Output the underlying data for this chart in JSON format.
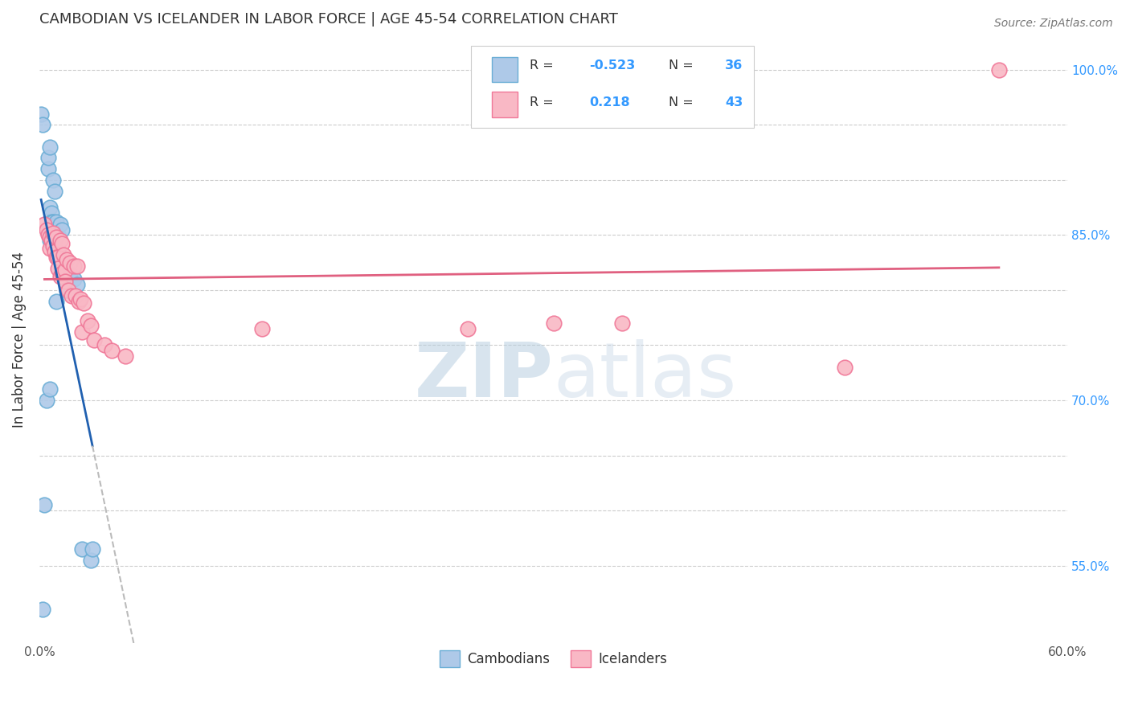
{
  "title": "CAMBODIAN VS ICELANDER IN LABOR FORCE | AGE 45-54 CORRELATION CHART",
  "source": "Source: ZipAtlas.com",
  "ylabel": "In Labor Force | Age 45-54",
  "xlim": [
    0.0,
    0.6
  ],
  "ylim": [
    0.48,
    1.03
  ],
  "xtick_positions": [
    0.0,
    0.1,
    0.2,
    0.3,
    0.4,
    0.5,
    0.6
  ],
  "xtick_labels": [
    "0.0%",
    "",
    "",
    "",
    "",
    "",
    "60.0%"
  ],
  "ytick_positions": [
    0.55,
    0.6,
    0.65,
    0.7,
    0.75,
    0.8,
    0.85,
    0.9,
    0.95,
    1.0
  ],
  "ytick_labels": [
    "55.0%",
    "",
    "",
    "70.0%",
    "",
    "",
    "85.0%",
    "",
    "",
    "100.0%"
  ],
  "cambodian_face": "#aec9e8",
  "cambodian_edge": "#6baed6",
  "icelander_face": "#f9b8c5",
  "icelander_edge": "#f07898",
  "cambodian_line_color": "#2060b0",
  "icelander_line_color": "#e06080",
  "ext_line_color": "#bbbbbb",
  "grid_color": "#cccccc",
  "text_color": "#333333",
  "blue_label_color": "#3399ff",
  "axis_tick_color": "#555555",
  "watermark_color": "#ccdcee",
  "cambodians_x": [
    0.001,
    0.002,
    0.003,
    0.004,
    0.005,
    0.005,
    0.006,
    0.006,
    0.006,
    0.006,
    0.007,
    0.007,
    0.007,
    0.008,
    0.008,
    0.008,
    0.008,
    0.009,
    0.009,
    0.01,
    0.01,
    0.01,
    0.011,
    0.011,
    0.012,
    0.013,
    0.013,
    0.015,
    0.016,
    0.018,
    0.02,
    0.022,
    0.025,
    0.03,
    0.031,
    0.002
  ],
  "cambodians_y": [
    0.96,
    0.95,
    0.605,
    0.7,
    0.91,
    0.92,
    0.93,
    0.875,
    0.845,
    0.71,
    0.87,
    0.862,
    0.842,
    0.9,
    0.862,
    0.858,
    0.848,
    0.89,
    0.852,
    0.862,
    0.852,
    0.79,
    0.85,
    0.835,
    0.86,
    0.855,
    0.825,
    0.82,
    0.8,
    0.815,
    0.81,
    0.805,
    0.565,
    0.555,
    0.565,
    0.51
  ],
  "icelanders_x": [
    0.003,
    0.004,
    0.005,
    0.006,
    0.006,
    0.007,
    0.008,
    0.008,
    0.009,
    0.01,
    0.01,
    0.011,
    0.011,
    0.012,
    0.012,
    0.013,
    0.013,
    0.014,
    0.015,
    0.015,
    0.016,
    0.017,
    0.018,
    0.019,
    0.02,
    0.021,
    0.022,
    0.023,
    0.024,
    0.025,
    0.026,
    0.028,
    0.03,
    0.032,
    0.038,
    0.042,
    0.05,
    0.13,
    0.25,
    0.3,
    0.34,
    0.47,
    0.56
  ],
  "icelanders_y": [
    0.86,
    0.855,
    0.85,
    0.848,
    0.838,
    0.845,
    0.852,
    0.84,
    0.835,
    0.848,
    0.83,
    0.83,
    0.82,
    0.845,
    0.812,
    0.842,
    0.815,
    0.832,
    0.818,
    0.808,
    0.828,
    0.8,
    0.825,
    0.795,
    0.822,
    0.795,
    0.822,
    0.79,
    0.792,
    0.762,
    0.788,
    0.772,
    0.768,
    0.755,
    0.75,
    0.745,
    0.74,
    0.765,
    0.765,
    0.77,
    0.77,
    0.73,
    1.0
  ],
  "cam_line_x0": 0.001,
  "cam_line_x1": 0.031,
  "cam_line_ext_x1": 0.46,
  "ice_line_x0": 0.003,
  "ice_line_x1": 0.56
}
